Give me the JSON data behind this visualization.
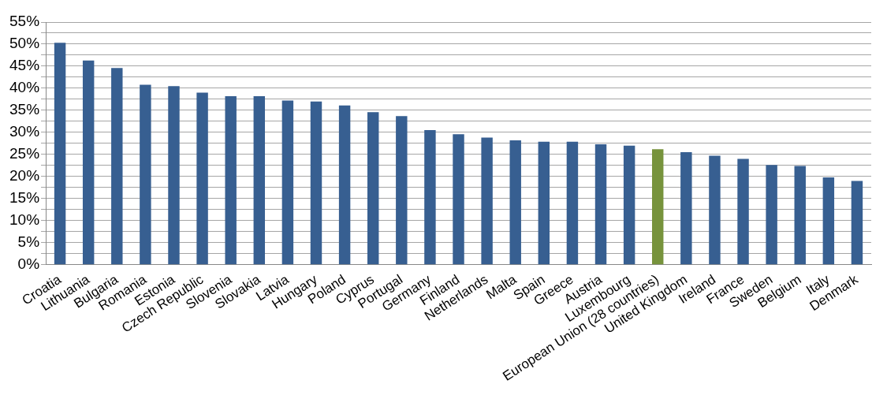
{
  "chart_data": {
    "type": "bar",
    "categories": [
      "Croatia",
      "Lithuania",
      "Bulgaria",
      "Romania",
      "Estonia",
      "Czech Republic",
      "Slovenia",
      "Slovakia",
      "Latvia",
      "Hungary",
      "Poland",
      "Cyprus",
      "Portugal",
      "Germany",
      "Finland",
      "Netherlands",
      "Malta",
      "Spain",
      "Greece",
      "Austria",
      "Luxembourg",
      "European Union (28 countries)",
      "United Kingdom",
      "Ireland",
      "France",
      "Sweden",
      "Belgium",
      "Italy",
      "Denmark"
    ],
    "values": [
      50.3,
      46.3,
      44.6,
      40.8,
      40.5,
      39.0,
      38.2,
      38.2,
      37.2,
      37.0,
      36.1,
      34.6,
      33.7,
      30.5,
      29.6,
      28.8,
      28.2,
      27.9,
      27.9,
      27.3,
      27.0,
      26.2,
      25.5,
      24.7,
      24.0,
      22.6,
      22.4,
      19.8,
      19.0
    ],
    "colors": [
      "#375f91",
      "#375f91",
      "#375f91",
      "#375f91",
      "#375f91",
      "#375f91",
      "#375f91",
      "#375f91",
      "#375f91",
      "#375f91",
      "#375f91",
      "#375f91",
      "#375f91",
      "#375f91",
      "#375f91",
      "#375f91",
      "#375f91",
      "#375f91",
      "#375f91",
      "#375f91",
      "#375f91",
      "#77933c",
      "#375f91",
      "#375f91",
      "#375f91",
      "#375f91",
      "#375f91",
      "#375f91",
      "#375f91"
    ],
    "ylim": [
      0,
      55
    ],
    "yticks": [
      {
        "value": 0,
        "label": "0%"
      },
      {
        "value": 2.5,
        "label": null
      },
      {
        "value": 5,
        "label": "5%"
      },
      {
        "value": 7.5,
        "label": null
      },
      {
        "value": 10,
        "label": "10%"
      },
      {
        "value": 12.5,
        "label": null
      },
      {
        "value": 15,
        "label": "15%"
      },
      {
        "value": 17.5,
        "label": null
      },
      {
        "value": 20,
        "label": "20%"
      },
      {
        "value": 22.5,
        "label": null
      },
      {
        "value": 25,
        "label": "25%"
      },
      {
        "value": 27.5,
        "label": null
      },
      {
        "value": 30,
        "label": "30%"
      },
      {
        "value": 32.5,
        "label": null
      },
      {
        "value": 35,
        "label": "35%"
      },
      {
        "value": 37.5,
        "label": null
      },
      {
        "value": 40,
        "label": "40%"
      },
      {
        "value": 42.5,
        "label": null
      },
      {
        "value": 45,
        "label": "45%"
      },
      {
        "value": 47.5,
        "label": null
      },
      {
        "value": 50,
        "label": "50%"
      },
      {
        "value": 52.5,
        "label": null
      },
      {
        "value": 55,
        "label": "55%"
      }
    ],
    "grid": "y",
    "legend": false
  }
}
